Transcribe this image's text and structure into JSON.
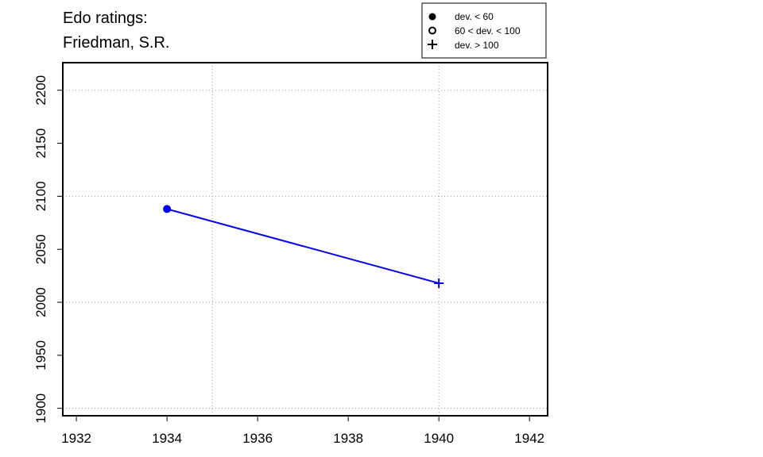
{
  "chart_data": {
    "type": "line",
    "title_lines": [
      "Edo ratings:",
      "Friedman, S.R."
    ],
    "xlabel": "",
    "ylabel": "",
    "xlim": [
      1931.7,
      1942.4
    ],
    "ylim": [
      1893,
      2226
    ],
    "x_ticks": [
      1932,
      1934,
      1936,
      1938,
      1940,
      1942
    ],
    "y_ticks": [
      1900,
      1950,
      2000,
      2050,
      2100,
      2150,
      2200
    ],
    "x_grid": [
      1935,
      1940
    ],
    "y_grid": [
      1900,
      2000,
      2100,
      2200
    ],
    "grid": true,
    "series": [
      {
        "color": "#0000ee",
        "points": [
          {
            "x": 1934,
            "y": 2088,
            "marker": "filled-circle"
          },
          {
            "x": 1940,
            "y": 2018,
            "marker": "plus"
          }
        ]
      }
    ],
    "legend": {
      "placement": "top-right",
      "entries": [
        {
          "marker": "filled-circle",
          "label": "dev. < 60"
        },
        {
          "marker": "open-circle",
          "label": "60 < dev. < 100"
        },
        {
          "marker": "plus",
          "label": "dev. > 100"
        }
      ]
    }
  }
}
